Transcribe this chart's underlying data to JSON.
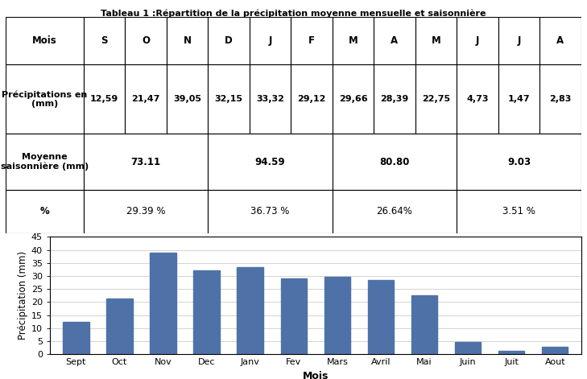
{
  "title": "Tableau 1 :Répartition de la précipitation moyenne mensuelle et saisonnière",
  "months_short": [
    "S",
    "O",
    "N",
    "D",
    "J",
    "F",
    "M",
    "A",
    "M",
    "J",
    "J",
    "A"
  ],
  "months_long": [
    "Sept",
    "Oct",
    "Nov",
    "Dec",
    "Janv",
    "Fev",
    "Mars",
    "Avril",
    "Mai",
    "Juin",
    "Juit",
    "Aout"
  ],
  "precip": [
    12.59,
    21.47,
    39.05,
    32.15,
    33.32,
    29.12,
    29.66,
    28.39,
    22.75,
    4.73,
    1.47,
    2.83
  ],
  "precip_str": [
    "12,59",
    "21,47",
    "39,05",
    "32,15",
    "33,32",
    "29,12",
    "29,66",
    "28,39",
    "22,75",
    "4,73",
    "1,47",
    "2,83"
  ],
  "seasonal_means": [
    "73.11",
    "94.59",
    "80.80",
    "9.03"
  ],
  "seasonal_pct": [
    "29.39 %",
    "36.73 %",
    "26.64%",
    "3.51 %"
  ],
  "bar_color": "#4E72A8",
  "ylabel": "Précipitation (mm)",
  "xlabel": "Mois",
  "ylim": [
    0,
    45
  ],
  "yticks": [
    0,
    5,
    10,
    15,
    20,
    25,
    30,
    35,
    40,
    45
  ],
  "grid_color": "#cccccc",
  "table_ratio": 0.38,
  "chart_ratio": 0.62
}
